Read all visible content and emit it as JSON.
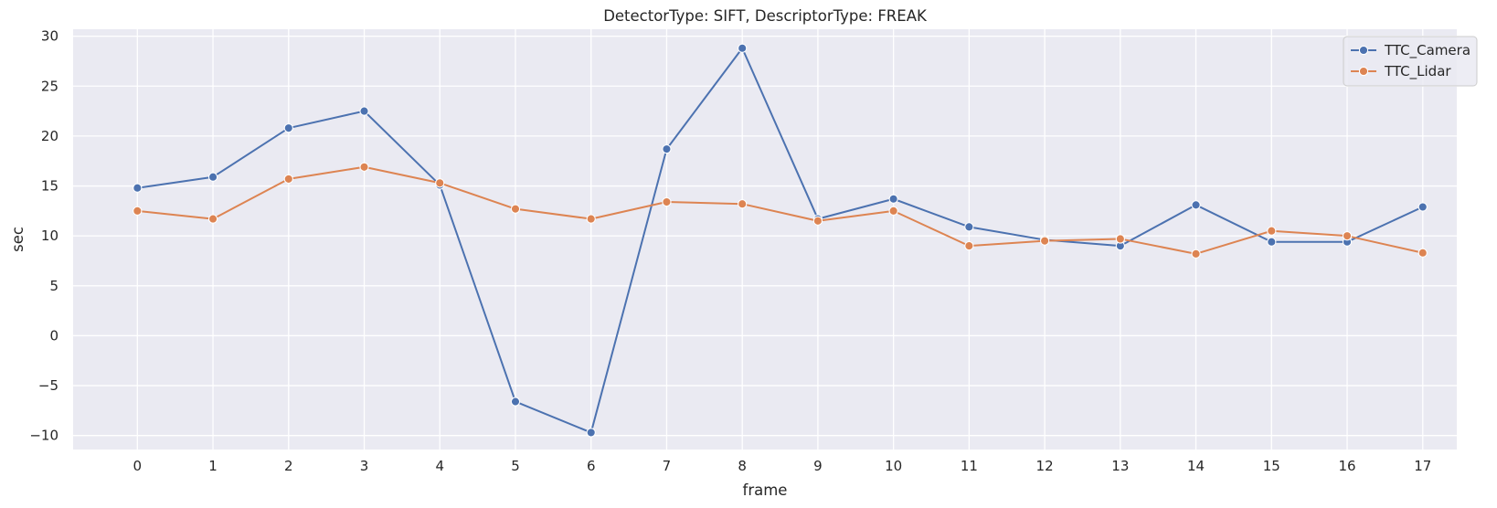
{
  "chart_data": {
    "type": "line",
    "title": "DetectorType: SIFT, DescriptorType: FREAK",
    "xlabel": "frame",
    "ylabel": "sec",
    "x": [
      0,
      1,
      2,
      3,
      4,
      5,
      6,
      7,
      8,
      9,
      10,
      11,
      12,
      13,
      14,
      15,
      16,
      17
    ],
    "x_ticks": [
      "0",
      "1",
      "2",
      "3",
      "4",
      "5",
      "6",
      "7",
      "8",
      "9",
      "10",
      "11",
      "12",
      "13",
      "14",
      "15",
      "16",
      "17"
    ],
    "y_ticks": [
      "−10",
      "−5",
      "0",
      "5",
      "10",
      "15",
      "20",
      "25",
      "30"
    ],
    "y_tick_values": [
      -10,
      -5,
      0,
      5,
      10,
      15,
      20,
      25,
      30
    ],
    "xlim": [
      -0.85,
      17.45
    ],
    "ylim": [
      -11.4,
      30.7
    ],
    "grid": true,
    "legend_position": "top-right",
    "background_color": "#eaeaf2",
    "grid_color": "#ffffff",
    "series": [
      {
        "name": "TTC_Camera",
        "color": "#4c72b0",
        "values": [
          14.8,
          15.9,
          20.8,
          22.5,
          15.1,
          -6.6,
          -9.7,
          18.7,
          28.8,
          11.7,
          13.7,
          10.9,
          9.6,
          9.0,
          13.1,
          9.4,
          9.4,
          12.9
        ]
      },
      {
        "name": "TTC_Lidar",
        "color": "#dd8452",
        "values": [
          12.5,
          11.7,
          15.7,
          16.9,
          15.3,
          12.7,
          11.7,
          13.4,
          13.2,
          11.5,
          12.5,
          9.0,
          9.5,
          9.7,
          8.2,
          10.5,
          10.0,
          8.3
        ]
      }
    ]
  }
}
